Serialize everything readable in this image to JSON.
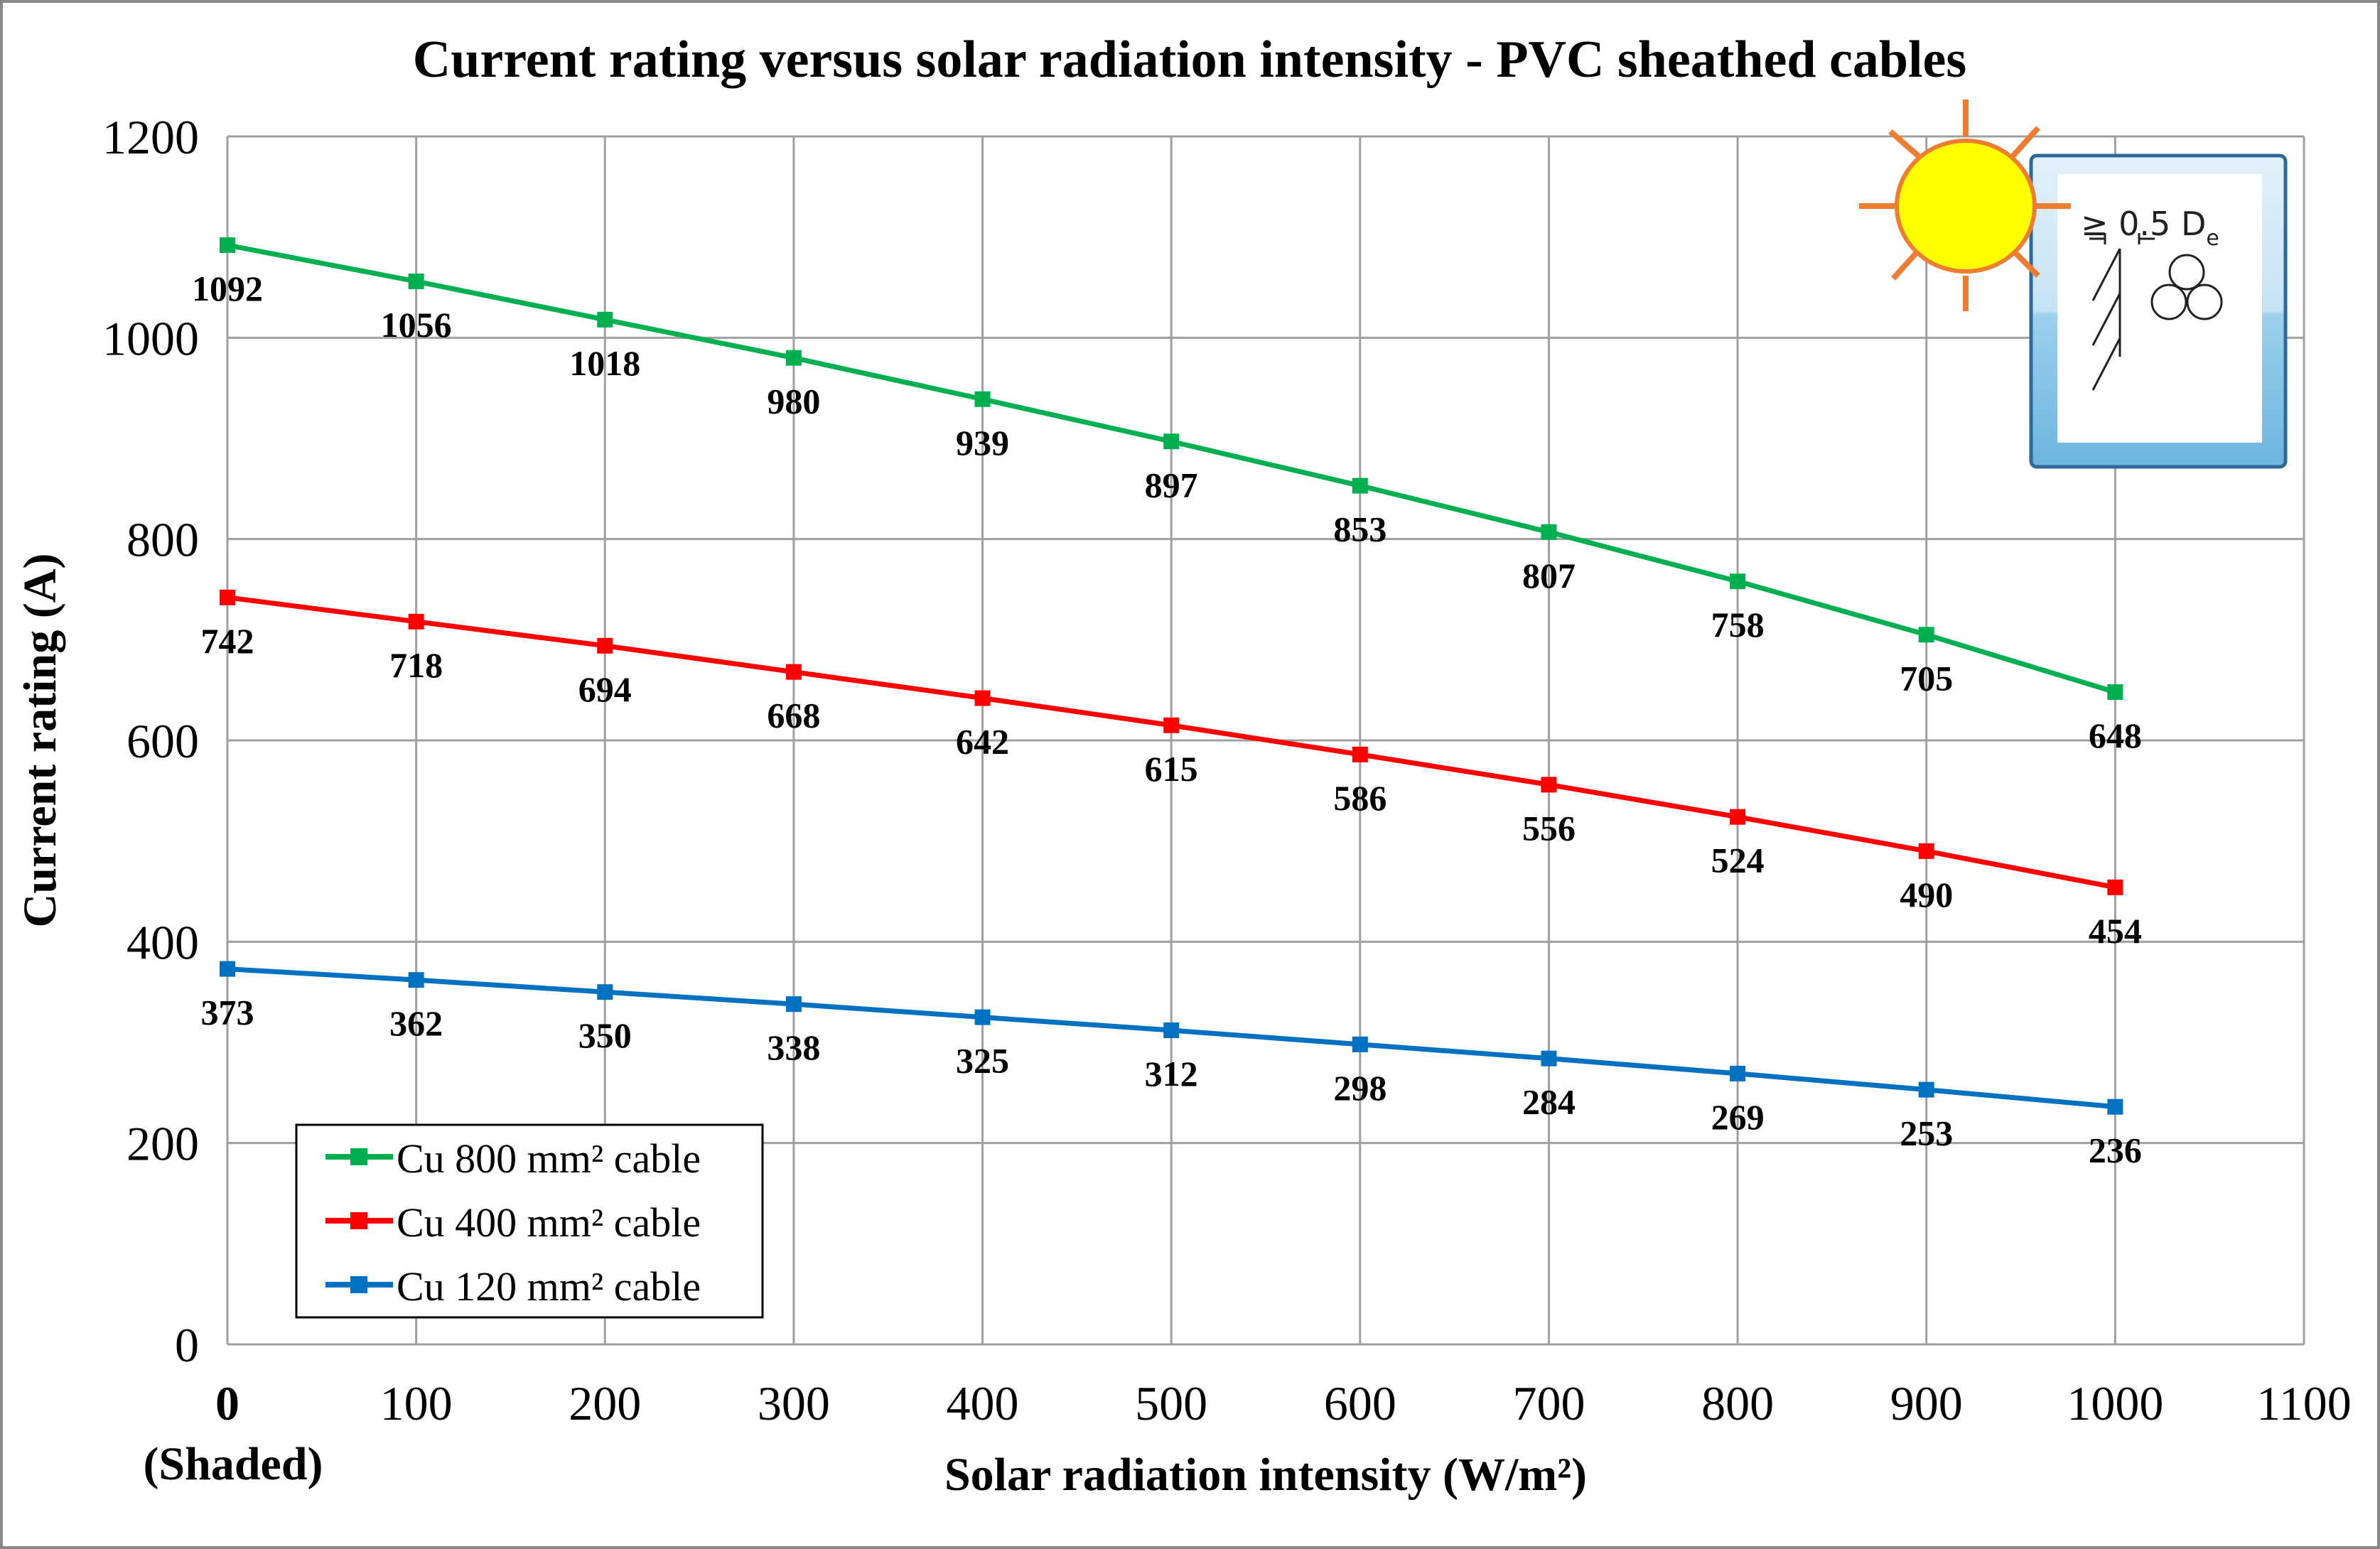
{
  "chart_data": {
    "type": "line",
    "title": "Current rating versus solar radiation intensity - PVC sheathed cables",
    "xlabel": "Solar radiation intensity (W/m²)",
    "ylabel": "Current rating (A)",
    "xlim": [
      0,
      1100
    ],
    "ylim": [
      0,
      1200
    ],
    "x_ticks": [
      "0",
      "100",
      "200",
      "300",
      "400",
      "500",
      "600",
      "700",
      "800",
      "900",
      "1000",
      "1100"
    ],
    "x_tick_sublabel": "(Shaded)",
    "y_ticks": [
      "0",
      "200",
      "400",
      "600",
      "800",
      "1000",
      "1200"
    ],
    "grid": true,
    "legend_position": "bottom-left",
    "x": [
      0,
      100,
      200,
      300,
      400,
      500,
      600,
      700,
      800,
      900,
      1000
    ],
    "series": [
      {
        "name": "Cu 800 mm² cable",
        "color": "#00b050",
        "values": [
          1092,
          1056,
          1018,
          980,
          939,
          897,
          853,
          807,
          758,
          705,
          648
        ]
      },
      {
        "name": "Cu 400 mm² cable",
        "color": "#ff0000",
        "values": [
          742,
          718,
          694,
          668,
          642,
          615,
          586,
          556,
          524,
          490,
          454
        ]
      },
      {
        "name": "Cu 120 mm² cable",
        "color": "#0070c0",
        "values": [
          373,
          362,
          350,
          338,
          325,
          312,
          298,
          284,
          269,
          253,
          236
        ]
      }
    ],
    "inset": {
      "label": "≥ 0.5 D",
      "label_subscript": "e",
      "icons": [
        "sun-icon",
        "cable-trefoil-icon"
      ]
    }
  }
}
